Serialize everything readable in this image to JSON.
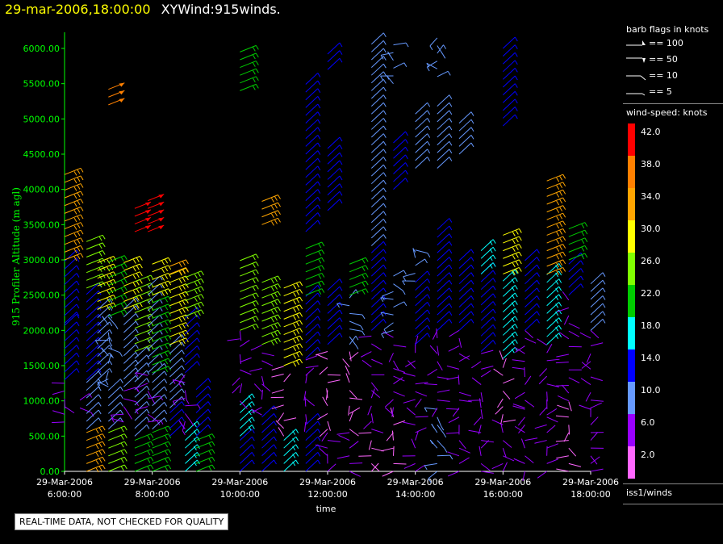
{
  "header": {
    "date_time": "29-mar-2006,18:00:00",
    "title": "XYWind:915winds."
  },
  "legend": {
    "flags_header": "barb flags in knots",
    "flags": [
      "== 100",
      "== 50",
      "== 10",
      "== 5"
    ],
    "colorbar_header": "wind-speed: knots",
    "colorbar": [
      {
        "label": "42.0",
        "color": "#ff0000"
      },
      {
        "label": "38.0",
        "color": "#ff8000"
      },
      {
        "label": "34.0",
        "color": "#ffa500"
      },
      {
        "label": "30.0",
        "color": "#ffff00"
      },
      {
        "label": "26.0",
        "color": "#80ff00"
      },
      {
        "label": "22.0",
        "color": "#00cc00"
      },
      {
        "label": "18.0",
        "color": "#00ffff"
      },
      {
        "label": "14.0",
        "color": "#0000ff"
      },
      {
        "label": "10.0",
        "color": "#6699ff"
      },
      {
        "label": "6.0",
        "color": "#9900ff"
      },
      {
        "label": "2.0",
        "color": "#ff66ff"
      }
    ],
    "source": "iss1/winds"
  },
  "footer_note": "REAL-TIME DATA, NOT CHECKED FOR QUALITY",
  "chart_data": {
    "type": "scatter",
    "title": "XYWind:915winds.",
    "xlabel": "time",
    "ylabel": "915 Profiler Altitude (m agl)",
    "ylim": [
      0,
      6000
    ],
    "xlim": [
      "29-Mar-2006 6:00:00",
      "29-Mar-2006 18:00:00"
    ],
    "y_ticks": [
      "0.00",
      "500.00",
      "1000.00",
      "1500.00",
      "2000.00",
      "2500.00",
      "3000.00",
      "3500.00",
      "4000.00",
      "4500.00",
      "5000.00",
      "5500.00",
      "6000.00"
    ],
    "x_ticks": [
      {
        "date": "29-Mar-2006",
        "time": "6:00:00",
        "hour": 6
      },
      {
        "date": "29-Mar-2006",
        "time": "8:00:00",
        "hour": 8
      },
      {
        "date": "29-Mar-2006",
        "time": "10:00:00",
        "hour": 10
      },
      {
        "date": "29-Mar-2006",
        "time": "12:00:00",
        "hour": 12
      },
      {
        "date": "29-Mar-2006",
        "time": "14:00:00",
        "hour": 14
      },
      {
        "date": "29-Mar-2006",
        "time": "16:00:00",
        "hour": 16
      },
      {
        "date": "29-Mar-2006",
        "time": "18:00:00",
        "hour": 18
      }
    ],
    "grid": false,
    "profiles": [
      {
        "hour": 6.0,
        "segments": [
          [
            700,
            1300,
            7
          ],
          [
            1300,
            2100,
            14
          ],
          [
            2100,
            3000,
            16
          ],
          [
            3000,
            4300,
            35
          ]
        ]
      },
      {
        "hour": 6.35,
        "segments": [
          [
            900,
            1100,
            8
          ]
        ]
      },
      {
        "hour": 6.5,
        "segments": [
          [
            0,
            600,
            36
          ],
          [
            600,
            1300,
            12
          ],
          [
            1300,
            2600,
            14
          ],
          [
            2600,
            3300,
            26
          ]
        ]
      },
      {
        "hour": 6.75,
        "segments": [
          [
            1300,
            2300,
            12
          ],
          [
            2300,
            3000,
            30
          ]
        ]
      },
      {
        "hour": 7.0,
        "segments": [
          [
            0,
            600,
            26
          ],
          [
            600,
            1200,
            12
          ],
          [
            1200,
            2200,
            10
          ],
          [
            2200,
            3000,
            24
          ],
          [
            5200,
            5500,
            40
          ]
        ]
      },
      {
        "hour": 7.35,
        "segments": [
          [
            700,
            1200,
            8
          ],
          [
            1200,
            2300,
            12
          ],
          [
            2300,
            3000,
            30
          ]
        ]
      },
      {
        "hour": 7.6,
        "segments": [
          [
            0,
            500,
            24
          ],
          [
            500,
            1700,
            12
          ],
          [
            1700,
            2700,
            26
          ],
          [
            3400,
            3800,
            42
          ]
        ]
      },
      {
        "hour": 7.9,
        "segments": [
          [
            700,
            1400,
            8
          ],
          [
            1400,
            2700,
            12
          ],
          [
            3400,
            3900,
            42
          ]
        ]
      },
      {
        "hour": 8.0,
        "segments": [
          [
            0,
            600,
            22
          ],
          [
            600,
            1400,
            12
          ],
          [
            1400,
            2500,
            24
          ],
          [
            2500,
            3000,
            30
          ]
        ]
      },
      {
        "hour": 8.4,
        "segments": [
          [
            500,
            900,
            14
          ],
          [
            900,
            1800,
            12
          ],
          [
            1800,
            2800,
            30
          ],
          [
            2800,
            3000,
            34
          ]
        ]
      },
      {
        "hour": 8.75,
        "segments": [
          [
            0,
            600,
            18
          ],
          [
            600,
            1400,
            8
          ],
          [
            1400,
            2200,
            14
          ],
          [
            2200,
            2800,
            28
          ]
        ]
      },
      {
        "hour": 9.0,
        "segments": [
          [
            0,
            500,
            22
          ],
          [
            500,
            1200,
            14
          ]
        ]
      },
      {
        "hour": 10.0,
        "segments": [
          [
            0,
            500,
            14
          ],
          [
            500,
            1000,
            18
          ],
          [
            1000,
            2000,
            6
          ],
          [
            2000,
            3000,
            26
          ],
          [
            5400,
            6000,
            22
          ]
        ]
      },
      {
        "hour": 10.5,
        "segments": [
          [
            0,
            800,
            14
          ],
          [
            800,
            1800,
            6
          ],
          [
            1800,
            2700,
            28
          ],
          [
            3500,
            3900,
            34
          ]
        ]
      },
      {
        "hour": 11.0,
        "segments": [
          [
            0,
            500,
            18
          ],
          [
            500,
            1500,
            4
          ],
          [
            1500,
            2700,
            30
          ]
        ]
      },
      {
        "hour": 11.5,
        "segments": [
          [
            0,
            700,
            14
          ],
          [
            700,
            1600,
            6
          ],
          [
            1600,
            2500,
            14
          ],
          [
            2500,
            3200,
            24
          ],
          [
            3400,
            5500,
            14
          ]
        ]
      },
      {
        "hour": 12.0,
        "segments": [
          [
            0,
            600,
            6
          ],
          [
            600,
            1800,
            4
          ],
          [
            1800,
            2600,
            14
          ],
          [
            3700,
            4600,
            16
          ],
          [
            5700,
            6000,
            14
          ]
        ]
      },
      {
        "hour": 12.5,
        "segments": [
          [
            0,
            600,
            6
          ],
          [
            600,
            1800,
            4
          ],
          [
            1800,
            2500,
            10
          ],
          [
            2500,
            3000,
            24
          ]
        ]
      },
      {
        "hour": 13.0,
        "segments": [
          [
            0,
            600,
            4
          ],
          [
            600,
            2000,
            6
          ],
          [
            2000,
            3200,
            14
          ],
          [
            3200,
            6100,
            12
          ]
        ]
      },
      {
        "hour": 13.5,
        "segments": [
          [
            0,
            800,
            4
          ],
          [
            800,
            2000,
            6
          ],
          [
            2000,
            2800,
            10
          ],
          [
            4000,
            4700,
            14
          ],
          [
            5500,
            6100,
            10
          ]
        ]
      },
      {
        "hour": 14.0,
        "segments": [
          [
            0,
            800,
            6
          ],
          [
            800,
            1800,
            6
          ],
          [
            1800,
            2700,
            14
          ],
          [
            2700,
            3200,
            10
          ],
          [
            4300,
            5100,
            12
          ]
        ]
      },
      {
        "hour": 14.5,
        "segments": [
          [
            0,
            900,
            10
          ],
          [
            900,
            2000,
            6
          ],
          [
            2000,
            3500,
            14
          ],
          [
            4300,
            5200,
            12
          ],
          [
            5600,
            6200,
            10
          ]
        ]
      },
      {
        "hour": 15.0,
        "segments": [
          [
            0,
            900,
            6
          ],
          [
            900,
            2000,
            6
          ],
          [
            2000,
            3000,
            14
          ],
          [
            4500,
            5000,
            12
          ]
        ]
      },
      {
        "hour": 15.5,
        "segments": [
          [
            0,
            900,
            6
          ],
          [
            900,
            1700,
            6
          ],
          [
            1700,
            2800,
            14
          ],
          [
            2800,
            3200,
            18
          ]
        ]
      },
      {
        "hour": 16.0,
        "segments": [
          [
            0,
            700,
            6
          ],
          [
            700,
            1600,
            4
          ],
          [
            1600,
            2800,
            18
          ],
          [
            2800,
            3400,
            30
          ],
          [
            4900,
            6100,
            14
          ]
        ]
      },
      {
        "hour": 16.5,
        "segments": [
          [
            0,
            900,
            6
          ],
          [
            900,
            2000,
            6
          ],
          [
            2000,
            3000,
            14
          ]
        ]
      },
      {
        "hour": 17.0,
        "segments": [
          [
            0,
            800,
            6
          ],
          [
            800,
            1800,
            6
          ],
          [
            1800,
            2800,
            18
          ],
          [
            2800,
            4200,
            34
          ]
        ]
      },
      {
        "hour": 17.5,
        "segments": [
          [
            0,
            1000,
            4
          ],
          [
            1000,
            2500,
            6
          ],
          [
            2500,
            3000,
            14
          ],
          [
            3000,
            3500,
            24
          ]
        ]
      },
      {
        "hour": 18.0,
        "segments": [
          [
            0,
            900,
            6
          ],
          [
            900,
            2000,
            6
          ],
          [
            2000,
            2700,
            12
          ]
        ]
      }
    ]
  }
}
